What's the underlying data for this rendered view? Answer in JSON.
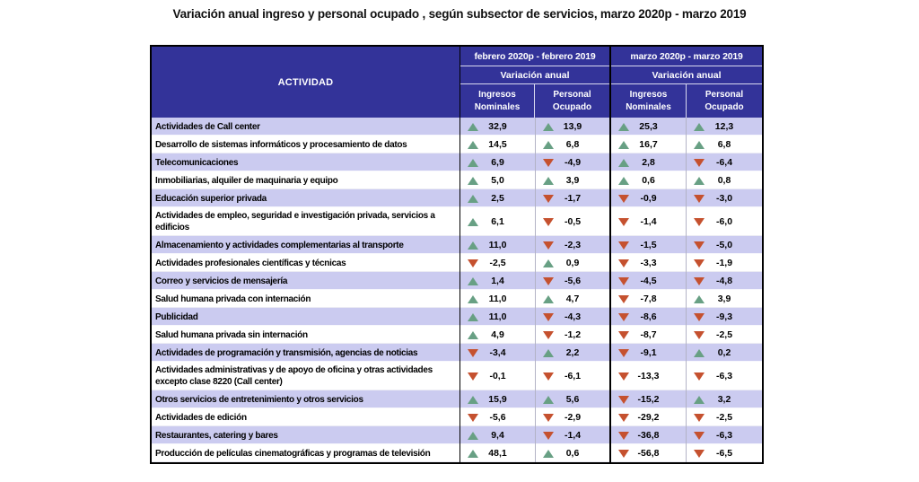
{
  "title": "Variación anual ingreso y personal ocupado , según subsector de servicios, marzo 2020p - marzo 2019",
  "colors": {
    "header_bg": "#333399",
    "row_alt": "#CBCBF0",
    "up": "#68A084",
    "down": "#C5512F"
  },
  "table": {
    "activity_header": "ACTIVIDAD",
    "groups": [
      {
        "period": "febrero 2020p - febrero 2019",
        "variation_label": "Variación anual",
        "columns": [
          "Ingresos\nNominales",
          "Personal\nOcupado"
        ]
      },
      {
        "period": "marzo 2020p - marzo 2019",
        "variation_label": "Variación anual",
        "columns": [
          "Ingresos\nNominales",
          "Personal\nOcupado"
        ]
      }
    ],
    "rows": [
      {
        "activity": "Actividades de Call center",
        "values": [
          {
            "dir": "up",
            "text": "32,9"
          },
          {
            "dir": "up",
            "text": "13,9"
          },
          {
            "dir": "up",
            "text": "25,3"
          },
          {
            "dir": "up",
            "text": "12,3"
          }
        ]
      },
      {
        "activity": "Desarrollo de sistemas informáticos y procesamiento de datos",
        "values": [
          {
            "dir": "up",
            "text": "14,5"
          },
          {
            "dir": "up",
            "text": "6,8"
          },
          {
            "dir": "up",
            "text": "16,7"
          },
          {
            "dir": "up",
            "text": "6,8"
          }
        ]
      },
      {
        "activity": "Telecomunicaciones",
        "values": [
          {
            "dir": "up",
            "text": "6,9"
          },
          {
            "dir": "down",
            "text": "-4,9"
          },
          {
            "dir": "up",
            "text": "2,8"
          },
          {
            "dir": "down",
            "text": "-6,4"
          }
        ]
      },
      {
        "activity": "Inmobiliarias, alquiler de maquinaria y equipo",
        "values": [
          {
            "dir": "up",
            "text": "5,0"
          },
          {
            "dir": "up",
            "text": "3,9"
          },
          {
            "dir": "up",
            "text": "0,6"
          },
          {
            "dir": "up",
            "text": "0,8"
          }
        ]
      },
      {
        "activity": "Educación superior privada",
        "values": [
          {
            "dir": "up",
            "text": "2,5"
          },
          {
            "dir": "down",
            "text": "-1,7"
          },
          {
            "dir": "down",
            "text": "-0,9"
          },
          {
            "dir": "down",
            "text": "-3,0"
          }
        ]
      },
      {
        "activity": "Actividades de empleo, seguridad e investigación privada, servicios a edificios",
        "values": [
          {
            "dir": "up",
            "text": "6,1"
          },
          {
            "dir": "down",
            "text": "-0,5"
          },
          {
            "dir": "down",
            "text": "-1,4"
          },
          {
            "dir": "down",
            "text": "-6,0"
          }
        ]
      },
      {
        "activity": "Almacenamiento y actividades complementarias al transporte",
        "values": [
          {
            "dir": "up",
            "text": "11,0"
          },
          {
            "dir": "down",
            "text": "-2,3"
          },
          {
            "dir": "down",
            "text": "-1,5"
          },
          {
            "dir": "down",
            "text": "-5,0"
          }
        ]
      },
      {
        "activity": "Actividades profesionales científicas y técnicas",
        "values": [
          {
            "dir": "down",
            "text": "-2,5"
          },
          {
            "dir": "up",
            "text": "0,9"
          },
          {
            "dir": "down",
            "text": "-3,3"
          },
          {
            "dir": "down",
            "text": "-1,9"
          }
        ]
      },
      {
        "activity": "Correo y servicios de mensajería",
        "values": [
          {
            "dir": "up",
            "text": "1,4"
          },
          {
            "dir": "down",
            "text": "-5,6"
          },
          {
            "dir": "down",
            "text": "-4,5"
          },
          {
            "dir": "down",
            "text": "-4,8"
          }
        ]
      },
      {
        "activity": "Salud humana privada con internación",
        "values": [
          {
            "dir": "up",
            "text": "11,0"
          },
          {
            "dir": "up",
            "text": "4,7"
          },
          {
            "dir": "down",
            "text": "-7,8"
          },
          {
            "dir": "up",
            "text": "3,9"
          }
        ]
      },
      {
        "activity": "Publicidad",
        "values": [
          {
            "dir": "up",
            "text": "11,0"
          },
          {
            "dir": "down",
            "text": "-4,3"
          },
          {
            "dir": "down",
            "text": "-8,6"
          },
          {
            "dir": "down",
            "text": "-9,3"
          }
        ]
      },
      {
        "activity": "Salud humana privada sin internación",
        "values": [
          {
            "dir": "up",
            "text": "4,9"
          },
          {
            "dir": "down",
            "text": "-1,2"
          },
          {
            "dir": "down",
            "text": "-8,7"
          },
          {
            "dir": "down",
            "text": "-2,5"
          }
        ]
      },
      {
        "activity": "Actividades de programación y transmisión,  agencias de noticias",
        "values": [
          {
            "dir": "down",
            "text": "-3,4"
          },
          {
            "dir": "up",
            "text": "2,2"
          },
          {
            "dir": "down",
            "text": "-9,1"
          },
          {
            "dir": "up",
            "text": "0,2"
          }
        ]
      },
      {
        "activity": "Actividades administrativas y de apoyo de oficina y otras actividades excepto clase 8220 (Call center)",
        "values": [
          {
            "dir": "down",
            "text": "-0,1"
          },
          {
            "dir": "down",
            "text": "-6,1"
          },
          {
            "dir": "down",
            "text": "-13,3"
          },
          {
            "dir": "down",
            "text": "-6,3"
          }
        ]
      },
      {
        "activity": "Otros servicios de entretenimiento y otros servicios",
        "values": [
          {
            "dir": "up",
            "text": "15,9"
          },
          {
            "dir": "up",
            "text": "5,6"
          },
          {
            "dir": "down",
            "text": "-15,2"
          },
          {
            "dir": "up",
            "text": "3,2"
          }
        ]
      },
      {
        "activity": "Actividades de edición",
        "values": [
          {
            "dir": "down",
            "text": "-5,6"
          },
          {
            "dir": "down",
            "text": "-2,9"
          },
          {
            "dir": "down",
            "text": "-29,2"
          },
          {
            "dir": "down",
            "text": "-2,5"
          }
        ]
      },
      {
        "activity": "Restaurantes, catering y bares",
        "values": [
          {
            "dir": "up",
            "text": "9,4"
          },
          {
            "dir": "down",
            "text": "-1,4"
          },
          {
            "dir": "down",
            "text": "-36,8"
          },
          {
            "dir": "down",
            "text": "-6,3"
          }
        ]
      },
      {
        "activity": "Producción de películas cinematográficas y programas de televisión",
        "values": [
          {
            "dir": "up",
            "text": "48,1"
          },
          {
            "dir": "up",
            "text": "0,6"
          },
          {
            "dir": "down",
            "text": "-56,8"
          },
          {
            "dir": "down",
            "text": "-6,5"
          }
        ]
      }
    ]
  },
  "chart_data": {
    "type": "table",
    "title": "Variación anual ingreso y personal ocupado , según subsector de servicios, marzo 2020p - marzo 2019",
    "categories": [
      "Actividades de Call center",
      "Desarrollo de sistemas informáticos y procesamiento de datos",
      "Telecomunicaciones",
      "Inmobiliarias, alquiler de maquinaria y equipo",
      "Educación superior privada",
      "Actividades de empleo, seguridad e investigación privada, servicios a edificios",
      "Almacenamiento y actividades complementarias al transporte",
      "Actividades profesionales científicas y técnicas",
      "Correo y servicios de mensajería",
      "Salud humana privada con internación",
      "Publicidad",
      "Salud humana privada sin internación",
      "Actividades de programación y transmisión,  agencias de noticias",
      "Actividades administrativas y de apoyo de oficina y otras actividades excepto clase 8220 (Call center)",
      "Otros servicios de entretenimiento y otros servicios",
      "Actividades de edición",
      "Restaurantes, catering y bares",
      "Producción de películas cinematográficas y programas de televisión"
    ],
    "series": [
      {
        "name": "febrero 2020p - febrero 2019 · Ingresos Nominales",
        "values": [
          32.9,
          14.5,
          6.9,
          5.0,
          2.5,
          6.1,
          11.0,
          -2.5,
          1.4,
          11.0,
          11.0,
          4.9,
          -3.4,
          -0.1,
          15.9,
          -5.6,
          9.4,
          48.1
        ]
      },
      {
        "name": "febrero 2020p - febrero 2019 · Personal Ocupado",
        "values": [
          13.9,
          6.8,
          -4.9,
          3.9,
          -1.7,
          -0.5,
          -2.3,
          0.9,
          -5.6,
          4.7,
          -4.3,
          -1.2,
          2.2,
          -6.1,
          5.6,
          -2.9,
          -1.4,
          0.6
        ]
      },
      {
        "name": "marzo 2020p - marzo 2019 · Ingresos Nominales",
        "values": [
          25.3,
          16.7,
          2.8,
          0.6,
          -0.9,
          -1.4,
          -1.5,
          -3.3,
          -4.5,
          -7.8,
          -8.6,
          -8.7,
          -9.1,
          -13.3,
          -15.2,
          -29.2,
          -36.8,
          -56.8
        ]
      },
      {
        "name": "marzo 2020p - marzo 2019 · Personal Ocupado",
        "values": [
          12.3,
          6.8,
          -6.4,
          0.8,
          -3.0,
          -6.0,
          -5.0,
          -1.9,
          -4.8,
          3.9,
          -9.3,
          -2.5,
          0.2,
          -6.3,
          3.2,
          -2.5,
          -6.3,
          -6.5
        ]
      }
    ],
    "legend_note": "green up-triangle = increase, red down-triangle = decrease"
  }
}
